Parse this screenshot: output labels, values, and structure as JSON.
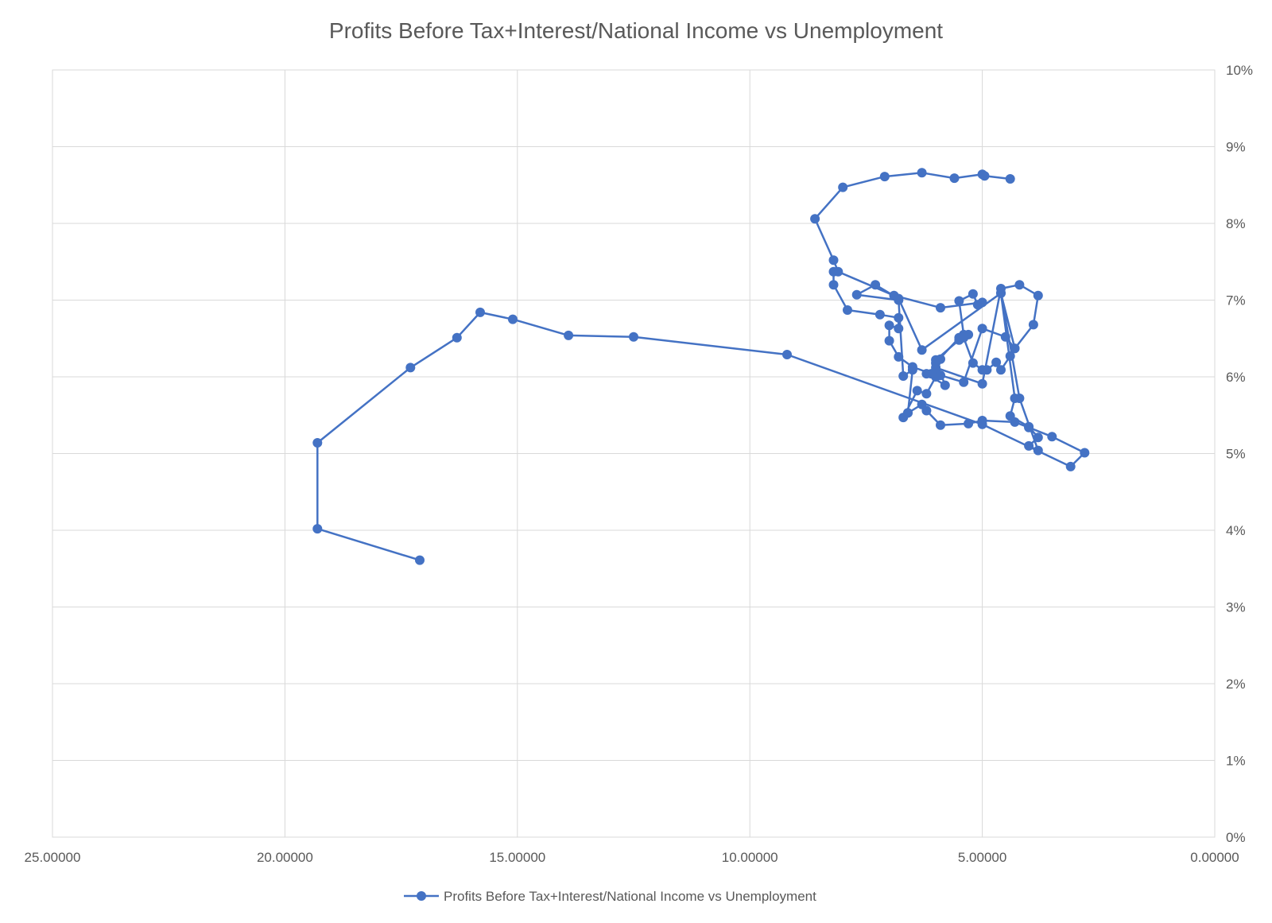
{
  "chart_data": {
    "type": "scatter",
    "title": "Profits Before Tax+Interest/National Income vs Unemployment",
    "xlabel": "",
    "ylabel": "",
    "x_axis": {
      "min": 0,
      "max": 25,
      "reversed": true,
      "ticks": [
        25,
        20,
        15,
        10,
        5,
        0
      ],
      "tick_labels": [
        "25.00000",
        "20.00000",
        "15.00000",
        "10.00000",
        "5.00000",
        "0.00000"
      ]
    },
    "y_axis": {
      "min": 0,
      "max": 0.1,
      "position": "right",
      "ticks": [
        0,
        0.01,
        0.02,
        0.03,
        0.04,
        0.05,
        0.06,
        0.07,
        0.08,
        0.09,
        0.1
      ],
      "tick_labels": [
        "0%",
        "1%",
        "2%",
        "3%",
        "4%",
        "5%",
        "6%",
        "7%",
        "8%",
        "9%",
        "10%"
      ]
    },
    "grid": true,
    "legend": {
      "position": "bottom",
      "entries": [
        "Profits Before Tax+Interest/National Income vs Unemployment"
      ]
    },
    "series": [
      {
        "name": "Profits Before Tax+Interest/National Income vs Unemployment",
        "color": "#4472C4",
        "style": "line-with-markers",
        "points": [
          [
            17.1,
            0.0361
          ],
          [
            19.3,
            0.0402
          ],
          [
            19.3,
            0.0514
          ],
          [
            17.3,
            0.0612
          ],
          [
            16.3,
            0.0651
          ],
          [
            15.8,
            0.0684
          ],
          [
            15.1,
            0.0675
          ],
          [
            13.9,
            0.0654
          ],
          [
            12.5,
            0.0652
          ],
          [
            9.2,
            0.0629
          ],
          [
            5.0,
            0.0538
          ],
          [
            3.1,
            0.0483
          ],
          [
            2.8,
            0.0501
          ],
          [
            3.5,
            0.0522
          ],
          [
            4.0,
            0.0534
          ],
          [
            4.3,
            0.0541
          ],
          [
            5.0,
            0.0543
          ],
          [
            5.3,
            0.0539
          ],
          [
            5.9,
            0.0537
          ],
          [
            6.2,
            0.0556
          ],
          [
            6.3,
            0.0564
          ],
          [
            6.6,
            0.0553
          ],
          [
            6.7,
            0.0547
          ],
          [
            6.4,
            0.0582
          ],
          [
            6.2,
            0.0578
          ],
          [
            6.0,
            0.06
          ],
          [
            5.9,
            0.0623
          ],
          [
            6.0,
            0.0618
          ],
          [
            5.5,
            0.0651
          ],
          [
            5.4,
            0.0655
          ],
          [
            5.5,
            0.0699
          ],
          [
            5.2,
            0.0708
          ],
          [
            5.1,
            0.0694
          ],
          [
            5.0,
            0.0697
          ],
          [
            5.9,
            0.069
          ],
          [
            6.9,
            0.0706
          ],
          [
            8.1,
            0.0737
          ],
          [
            8.2,
            0.0752
          ],
          [
            8.6,
            0.0806
          ],
          [
            8.0,
            0.0847
          ],
          [
            7.1,
            0.0861
          ],
          [
            6.3,
            0.0866
          ],
          [
            5.6,
            0.0859
          ],
          [
            5.0,
            0.0864
          ],
          [
            4.95,
            0.0862
          ],
          [
            4.4,
            0.0858
          ]
        ]
      },
      {
        "name": "Profits Before Tax+Interest/National Income vs Unemployment (loop)",
        "color": "#4472C4",
        "style": "line-with-markers",
        "points": [
          [
            8.2,
            0.0737
          ],
          [
            8.2,
            0.072
          ],
          [
            7.9,
            0.0687
          ],
          [
            7.2,
            0.0681
          ],
          [
            6.8,
            0.0677
          ],
          [
            6.8,
            0.0663
          ],
          [
            7.0,
            0.0667
          ],
          [
            7.0,
            0.0647
          ],
          [
            6.8,
            0.0626
          ],
          [
            6.5,
            0.0613
          ],
          [
            6.1,
            0.0604
          ],
          [
            6.2,
            0.0604
          ],
          [
            5.8,
            0.0589
          ],
          [
            6.0,
            0.0622
          ],
          [
            5.5,
            0.0648
          ],
          [
            5.3,
            0.0655
          ],
          [
            5.4,
            0.0651
          ],
          [
            5.2,
            0.0618
          ],
          [
            5.0,
            0.0609
          ],
          [
            4.9,
            0.0609
          ],
          [
            4.7,
            0.0619
          ],
          [
            4.6,
            0.0609
          ],
          [
            4.4,
            0.0627
          ],
          [
            4.3,
            0.0637
          ],
          [
            4.5,
            0.0652
          ],
          [
            5.0,
            0.0663
          ],
          [
            5.4,
            0.0593
          ],
          [
            5.9,
            0.0602
          ],
          [
            6.0,
            0.0612
          ],
          [
            5.0,
            0.0591
          ],
          [
            4.6,
            0.0715
          ],
          [
            4.2,
            0.072
          ],
          [
            3.8,
            0.0706
          ],
          [
            3.9,
            0.0668
          ],
          [
            4.3,
            0.0637
          ],
          [
            4.6,
            0.0709
          ],
          [
            4.3,
            0.0572
          ],
          [
            4.4,
            0.0549
          ],
          [
            4.0,
            0.0535
          ],
          [
            3.8,
            0.0521
          ],
          [
            4.0,
            0.051
          ],
          [
            3.8,
            0.0504
          ],
          [
            4.2,
            0.0572
          ],
          [
            4.6,
            0.0709
          ],
          [
            6.3,
            0.0635
          ],
          [
            6.8,
            0.0702
          ],
          [
            7.3,
            0.072
          ],
          [
            7.7,
            0.0707
          ],
          [
            6.8,
            0.07
          ],
          [
            6.7,
            0.0601
          ],
          [
            6.5,
            0.0609
          ],
          [
            6.6,
            0.0553
          ]
        ]
      }
    ]
  }
}
